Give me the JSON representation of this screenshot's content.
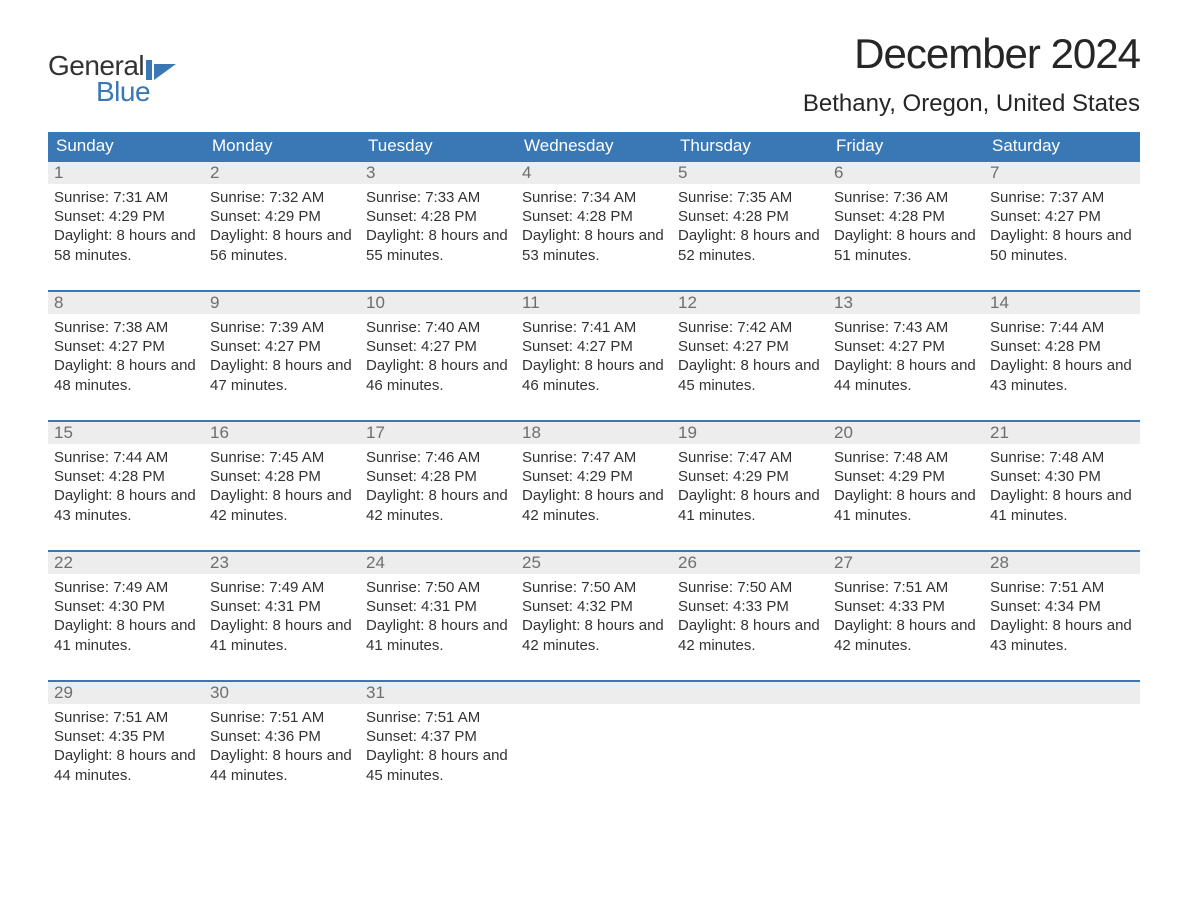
{
  "logo": {
    "text1": "General",
    "text2": "Blue",
    "shape_color": "#3a78b5"
  },
  "header": {
    "month_title": "December 2024",
    "location": "Bethany, Oregon, United States"
  },
  "colors": {
    "header_bg": "#3a78b5",
    "header_fg": "#ffffff",
    "daynum_bg": "#ededed",
    "daynum_fg": "#6e6e6e",
    "text": "#333333",
    "row_border": "#3a78b5",
    "page_bg": "#ffffff"
  },
  "typography": {
    "title_fontsize": 42,
    "location_fontsize": 24,
    "weekday_fontsize": 17,
    "daynum_fontsize": 17,
    "body_fontsize": 15,
    "font_family": "Arial"
  },
  "weekdays": [
    "Sunday",
    "Monday",
    "Tuesday",
    "Wednesday",
    "Thursday",
    "Friday",
    "Saturday"
  ],
  "labels": {
    "sunrise": "Sunrise:",
    "sunset": "Sunset:",
    "daylight_prefix": "Daylight:",
    "hours_word": "hours",
    "and_word": "and",
    "minutes_word": "minutes."
  },
  "weeks": [
    [
      {
        "day": 1,
        "sunrise": "7:31 AM",
        "sunset": "4:29 PM",
        "dl_h": 8,
        "dl_m": 58
      },
      {
        "day": 2,
        "sunrise": "7:32 AM",
        "sunset": "4:29 PM",
        "dl_h": 8,
        "dl_m": 56
      },
      {
        "day": 3,
        "sunrise": "7:33 AM",
        "sunset": "4:28 PM",
        "dl_h": 8,
        "dl_m": 55
      },
      {
        "day": 4,
        "sunrise": "7:34 AM",
        "sunset": "4:28 PM",
        "dl_h": 8,
        "dl_m": 53
      },
      {
        "day": 5,
        "sunrise": "7:35 AM",
        "sunset": "4:28 PM",
        "dl_h": 8,
        "dl_m": 52
      },
      {
        "day": 6,
        "sunrise": "7:36 AM",
        "sunset": "4:28 PM",
        "dl_h": 8,
        "dl_m": 51
      },
      {
        "day": 7,
        "sunrise": "7:37 AM",
        "sunset": "4:27 PM",
        "dl_h": 8,
        "dl_m": 50
      }
    ],
    [
      {
        "day": 8,
        "sunrise": "7:38 AM",
        "sunset": "4:27 PM",
        "dl_h": 8,
        "dl_m": 48
      },
      {
        "day": 9,
        "sunrise": "7:39 AM",
        "sunset": "4:27 PM",
        "dl_h": 8,
        "dl_m": 47
      },
      {
        "day": 10,
        "sunrise": "7:40 AM",
        "sunset": "4:27 PM",
        "dl_h": 8,
        "dl_m": 46
      },
      {
        "day": 11,
        "sunrise": "7:41 AM",
        "sunset": "4:27 PM",
        "dl_h": 8,
        "dl_m": 46
      },
      {
        "day": 12,
        "sunrise": "7:42 AM",
        "sunset": "4:27 PM",
        "dl_h": 8,
        "dl_m": 45
      },
      {
        "day": 13,
        "sunrise": "7:43 AM",
        "sunset": "4:27 PM",
        "dl_h": 8,
        "dl_m": 44
      },
      {
        "day": 14,
        "sunrise": "7:44 AM",
        "sunset": "4:28 PM",
        "dl_h": 8,
        "dl_m": 43
      }
    ],
    [
      {
        "day": 15,
        "sunrise": "7:44 AM",
        "sunset": "4:28 PM",
        "dl_h": 8,
        "dl_m": 43
      },
      {
        "day": 16,
        "sunrise": "7:45 AM",
        "sunset": "4:28 PM",
        "dl_h": 8,
        "dl_m": 42
      },
      {
        "day": 17,
        "sunrise": "7:46 AM",
        "sunset": "4:28 PM",
        "dl_h": 8,
        "dl_m": 42
      },
      {
        "day": 18,
        "sunrise": "7:47 AM",
        "sunset": "4:29 PM",
        "dl_h": 8,
        "dl_m": 42
      },
      {
        "day": 19,
        "sunrise": "7:47 AM",
        "sunset": "4:29 PM",
        "dl_h": 8,
        "dl_m": 41
      },
      {
        "day": 20,
        "sunrise": "7:48 AM",
        "sunset": "4:29 PM",
        "dl_h": 8,
        "dl_m": 41
      },
      {
        "day": 21,
        "sunrise": "7:48 AM",
        "sunset": "4:30 PM",
        "dl_h": 8,
        "dl_m": 41
      }
    ],
    [
      {
        "day": 22,
        "sunrise": "7:49 AM",
        "sunset": "4:30 PM",
        "dl_h": 8,
        "dl_m": 41
      },
      {
        "day": 23,
        "sunrise": "7:49 AM",
        "sunset": "4:31 PM",
        "dl_h": 8,
        "dl_m": 41
      },
      {
        "day": 24,
        "sunrise": "7:50 AM",
        "sunset": "4:31 PM",
        "dl_h": 8,
        "dl_m": 41
      },
      {
        "day": 25,
        "sunrise": "7:50 AM",
        "sunset": "4:32 PM",
        "dl_h": 8,
        "dl_m": 42
      },
      {
        "day": 26,
        "sunrise": "7:50 AM",
        "sunset": "4:33 PM",
        "dl_h": 8,
        "dl_m": 42
      },
      {
        "day": 27,
        "sunrise": "7:51 AM",
        "sunset": "4:33 PM",
        "dl_h": 8,
        "dl_m": 42
      },
      {
        "day": 28,
        "sunrise": "7:51 AM",
        "sunset": "4:34 PM",
        "dl_h": 8,
        "dl_m": 43
      }
    ],
    [
      {
        "day": 29,
        "sunrise": "7:51 AM",
        "sunset": "4:35 PM",
        "dl_h": 8,
        "dl_m": 44
      },
      {
        "day": 30,
        "sunrise": "7:51 AM",
        "sunset": "4:36 PM",
        "dl_h": 8,
        "dl_m": 44
      },
      {
        "day": 31,
        "sunrise": "7:51 AM",
        "sunset": "4:37 PM",
        "dl_h": 8,
        "dl_m": 45
      },
      null,
      null,
      null,
      null
    ]
  ]
}
